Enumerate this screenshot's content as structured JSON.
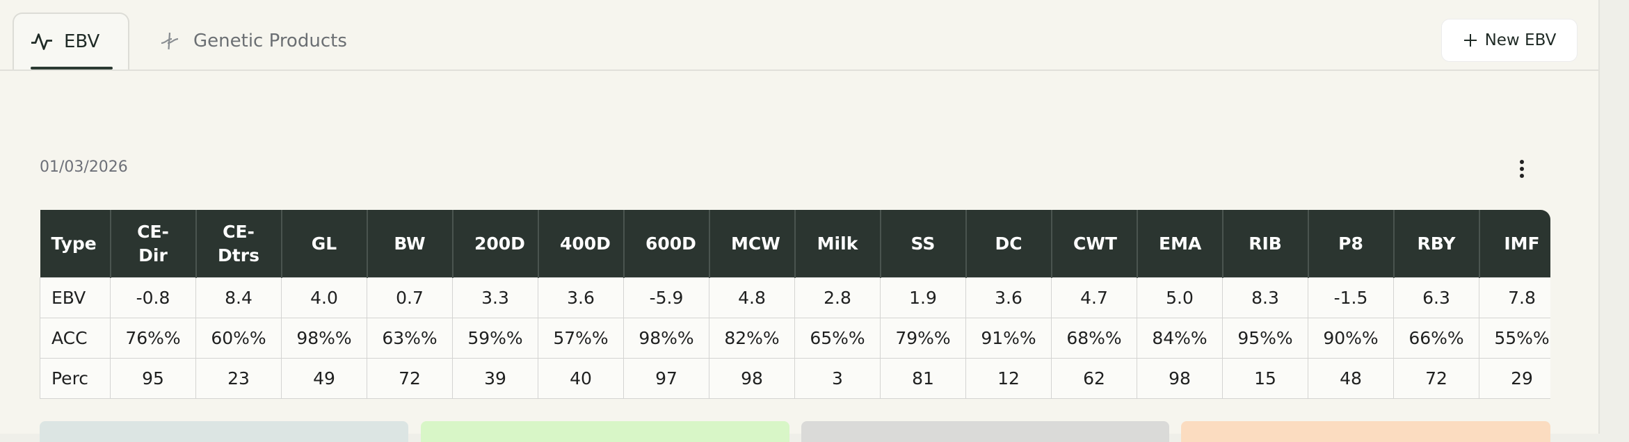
{
  "tabs": [
    "EBV",
    "Genetic Products"
  ],
  "button": "New EBV",
  "date": "01/03/2026",
  "table": {
    "header": [
      "Type",
      "CE-Dir",
      "CE-Dtrs",
      "GL",
      "BW",
      "200D",
      "400D",
      "600D",
      "MCW",
      "Milk",
      "SS",
      "DC",
      "CWT",
      "EMA",
      "RIB",
      "P8",
      "RBY",
      "IMF"
    ],
    "rows": [
      [
        "EBV",
        "-0.8",
        "8.4",
        "4.0",
        "0.7",
        "3.3",
        "3.6",
        "-5.9",
        "4.8",
        "2.8",
        "1.9",
        "3.6",
        "4.7",
        "5.0",
        "8.3",
        "-1.5",
        "6.3",
        "7.8"
      ],
      [
        "ACC",
        "76%%",
        "60%%",
        "98%%",
        "63%%",
        "59%%",
        "57%%",
        "98%%",
        "82%%",
        "65%%",
        "79%%",
        "91%%",
        "68%%",
        "84%%",
        "95%%",
        "90%%",
        "66%%",
        "55%%"
      ],
      [
        "Perc",
        "95",
        "23",
        "49",
        "72",
        "39",
        "40",
        "97",
        "98",
        "3",
        "81",
        "12",
        "62",
        "98",
        "15",
        "48",
        "72",
        "29"
      ]
    ]
  }
}
